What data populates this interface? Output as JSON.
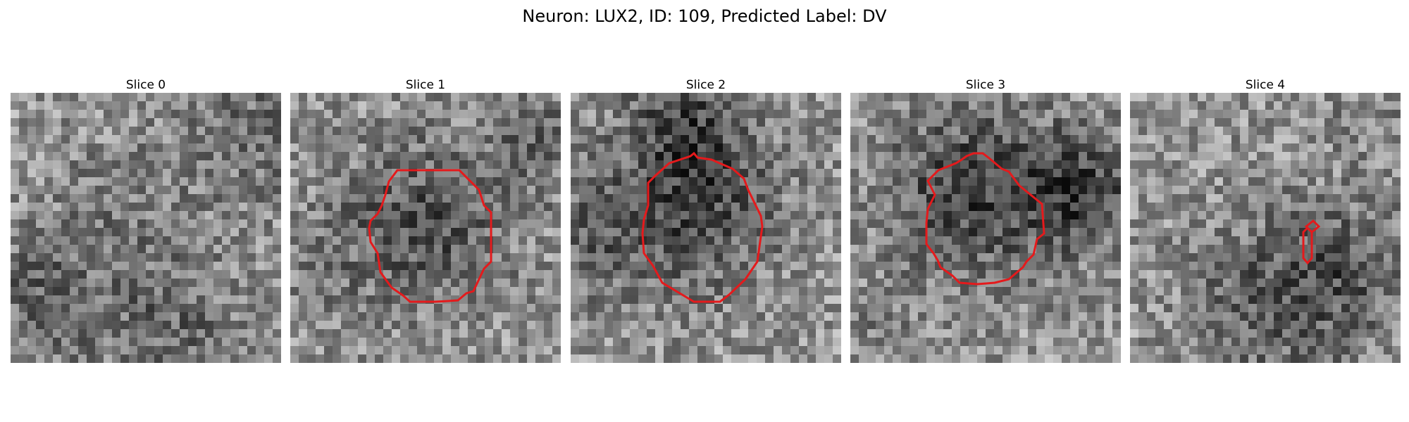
{
  "title": "Neuron: LUX2, ID: 109, Predicted Label: DV",
  "colors": {
    "contour": "#e41a1c",
    "colormap": "gray"
  },
  "panels": [
    {
      "title": "Slice 0",
      "has_contour": false
    },
    {
      "title": "Slice 1",
      "has_contour": true
    },
    {
      "title": "Slice 2",
      "has_contour": true
    },
    {
      "title": "Slice 3",
      "has_contour": true
    },
    {
      "title": "Slice 4",
      "has_contour": true
    }
  ]
}
